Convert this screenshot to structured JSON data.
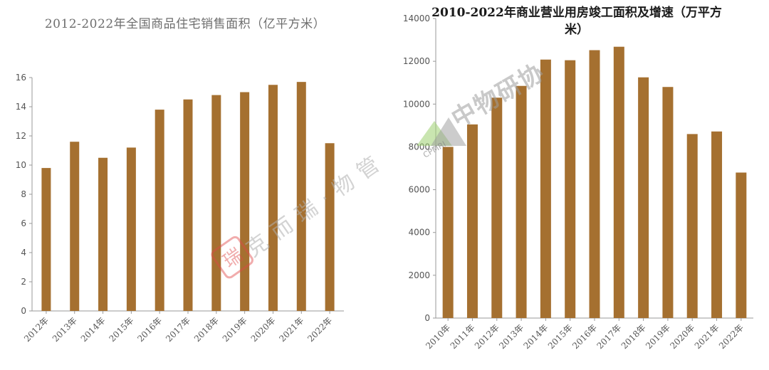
{
  "chart_data": [
    {
      "type": "bar",
      "title": "2012-2022年全国商品住宅销售面积（亿平方米）",
      "categories": [
        "2012年",
        "2013年",
        "2014年",
        "2015年",
        "2016年",
        "2017年",
        "2018年",
        "2019年",
        "2020年",
        "2021年",
        "2022年"
      ],
      "values": [
        9.8,
        11.6,
        10.5,
        11.2,
        13.8,
        14.5,
        14.8,
        15.0,
        15.5,
        15.7,
        11.5
      ],
      "ylim": [
        0,
        16
      ],
      "yticks": [
        0,
        2,
        4,
        6,
        8,
        10,
        12,
        14,
        16
      ],
      "grid": false,
      "bar_color": "#a57030"
    },
    {
      "type": "bar",
      "title": "2010-2022年商业营业用房竣工面积及增速（万平方米）",
      "categories": [
        "2010年",
        "2011年",
        "2012年",
        "2013年",
        "2014年",
        "2015年",
        "2016年",
        "2017年",
        "2018年",
        "2019年",
        "2020年",
        "2021年",
        "2022年"
      ],
      "values": [
        8000,
        9050,
        10300,
        10850,
        12080,
        12050,
        12520,
        12680,
        11250,
        10800,
        8600,
        8720,
        6800
      ],
      "ylim": [
        0,
        14000
      ],
      "yticks": [
        0,
        2000,
        4000,
        6000,
        8000,
        10000,
        12000,
        14000
      ],
      "grid": false,
      "bar_color": "#a57030"
    }
  ],
  "watermarks": {
    "left": {
      "text": "克而瑞·物管",
      "icon": "kerui-seal-icon"
    },
    "right": {
      "text": "中物研协",
      "sub": "CPMRI",
      "icon": "cpmri-logo-icon"
    }
  }
}
